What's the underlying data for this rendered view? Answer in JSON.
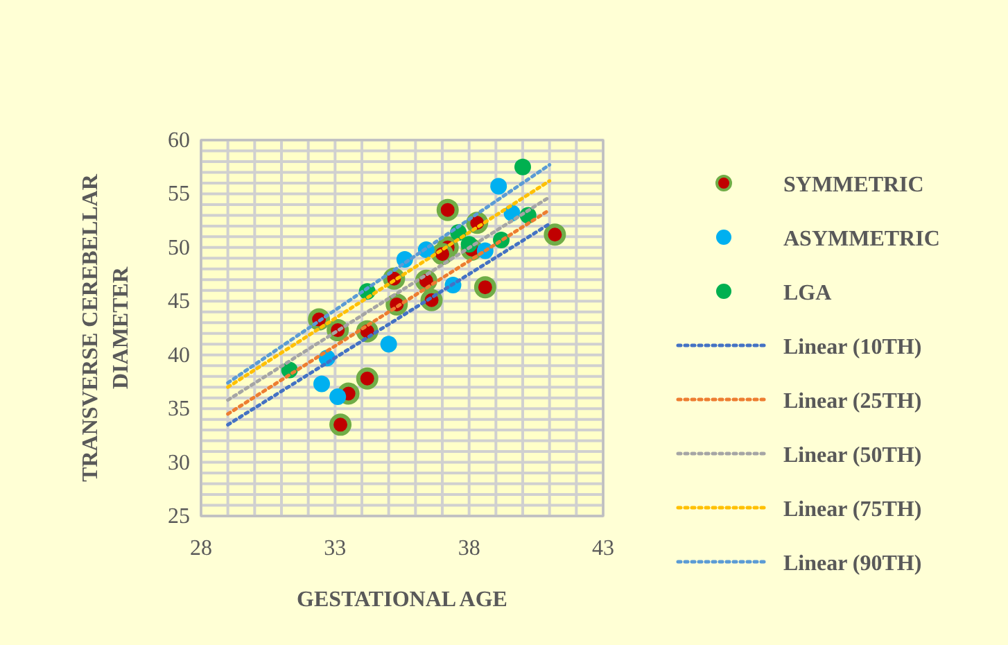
{
  "chart_data": {
    "type": "scatter",
    "xlabel": "GESTATIONAL  AGE",
    "ylabel": "TRANSVERSE CEREBELLAR DIAMETER",
    "xlim": [
      28,
      43
    ],
    "ylim": [
      25,
      60
    ],
    "xticks": [
      28,
      {
        "value": 29,
        "label": null
      },
      {
        "value": 30,
        "label": null
      },
      {
        "value": 31,
        "label": null
      },
      {
        "value": 32,
        "label": null
      },
      33,
      {
        "value": 34,
        "label": null
      },
      {
        "value": 35,
        "label": null
      },
      {
        "value": 36,
        "label": null
      },
      {
        "value": 37,
        "label": null
      },
      38,
      {
        "value": 39,
        "label": null
      },
      {
        "value": 40,
        "label": null
      },
      {
        "value": 41,
        "label": null
      },
      {
        "value": 42,
        "label": null
      },
      43
    ],
    "yticks": [
      25,
      {
        "value": 26,
        "label": null
      },
      {
        "value": 27,
        "label": null
      },
      {
        "value": 28,
        "label": null
      },
      {
        "value": 29,
        "label": null
      },
      30,
      {
        "value": 31,
        "label": null
      },
      {
        "value": 32,
        "label": null
      },
      {
        "value": 33,
        "label": null
      },
      {
        "value": 34,
        "label": null
      },
      35,
      {
        "value": 36,
        "label": null
      },
      {
        "value": 37,
        "label": null
      },
      {
        "value": 38,
        "label": null
      },
      {
        "value": 39,
        "label": null
      },
      40,
      {
        "value": 41,
        "label": null
      },
      {
        "value": 42,
        "label": null
      },
      {
        "value": 43,
        "label": null
      },
      {
        "value": 44,
        "label": null
      },
      45,
      {
        "value": 46,
        "label": null
      },
      {
        "value": 47,
        "label": null
      },
      {
        "value": 48,
        "label": null
      },
      {
        "value": 49,
        "label": null
      },
      50,
      {
        "value": 51,
        "label": null
      },
      {
        "value": 52,
        "label": null
      },
      {
        "value": 53,
        "label": null
      },
      {
        "value": 54,
        "label": null
      },
      55,
      {
        "value": 56,
        "label": null
      },
      {
        "value": 57,
        "label": null
      },
      {
        "value": 58,
        "label": null
      },
      {
        "value": 59,
        "label": null
      },
      60
    ],
    "grid": true,
    "legend": "right",
    "series": [
      {
        "name": "SYMMETRIC",
        "color": "#c00000",
        "marker": "circle",
        "x": [
          37.2,
          38.3,
          41.2,
          37.2,
          37.0,
          38.1,
          38.6,
          35.2,
          36.4,
          36.6,
          35.3,
          32.4,
          33.1,
          34.2,
          34.2,
          33.5,
          33.2
        ],
        "values": [
          53.5,
          52.3,
          51.2,
          50.0,
          49.4,
          49.8,
          46.3,
          47.1,
          46.9,
          45.1,
          44.7,
          43.3,
          42.3,
          42.2,
          37.8,
          36.4,
          33.5
        ]
      },
      {
        "name": "ASYMMETRIC",
        "color": "#00b0f0",
        "marker": "circle",
        "x": [
          39.1,
          39.6,
          38.6,
          36.4,
          35.6,
          37.4,
          35.0,
          32.7,
          32.5,
          33.1
        ],
        "values": [
          55.7,
          53.2,
          49.7,
          49.8,
          48.9,
          46.5,
          41.0,
          39.7,
          37.3,
          36.1
        ]
      },
      {
        "name": "LGA",
        "color": "#00b050",
        "marker": "circle",
        "x": [
          40.0,
          40.2,
          37.6,
          38.0,
          39.2,
          34.2,
          31.3
        ],
        "values": [
          57.5,
          53.0,
          51.4,
          50.3,
          50.7,
          45.9,
          38.6
        ]
      },
      {
        "name": "Linear (10TH)",
        "type": "line",
        "line_style": "dotted",
        "color": "#4472c4",
        "x": [
          29,
          41
        ],
        "values": [
          33.5,
          52.2
        ]
      },
      {
        "name": "Linear (25TH)",
        "type": "line",
        "line_style": "dotted",
        "color": "#ed7d31",
        "x": [
          29,
          41
        ],
        "values": [
          34.5,
          53.5
        ]
      },
      {
        "name": "Linear (50TH)",
        "type": "line",
        "line_style": "dotted",
        "color": "#a5a5a5",
        "x": [
          29,
          41
        ],
        "values": [
          35.8,
          54.7
        ]
      },
      {
        "name": "Linear (75TH)",
        "type": "line",
        "line_style": "dotted",
        "color": "#ffc000",
        "x": [
          29,
          41
        ],
        "values": [
          37.0,
          56.2
        ]
      },
      {
        "name": "Linear (90TH)",
        "type": "line",
        "line_style": "dotted",
        "color": "#5b9bd5",
        "x": [
          29,
          41
        ],
        "values": [
          37.4,
          57.7
        ]
      }
    ]
  }
}
